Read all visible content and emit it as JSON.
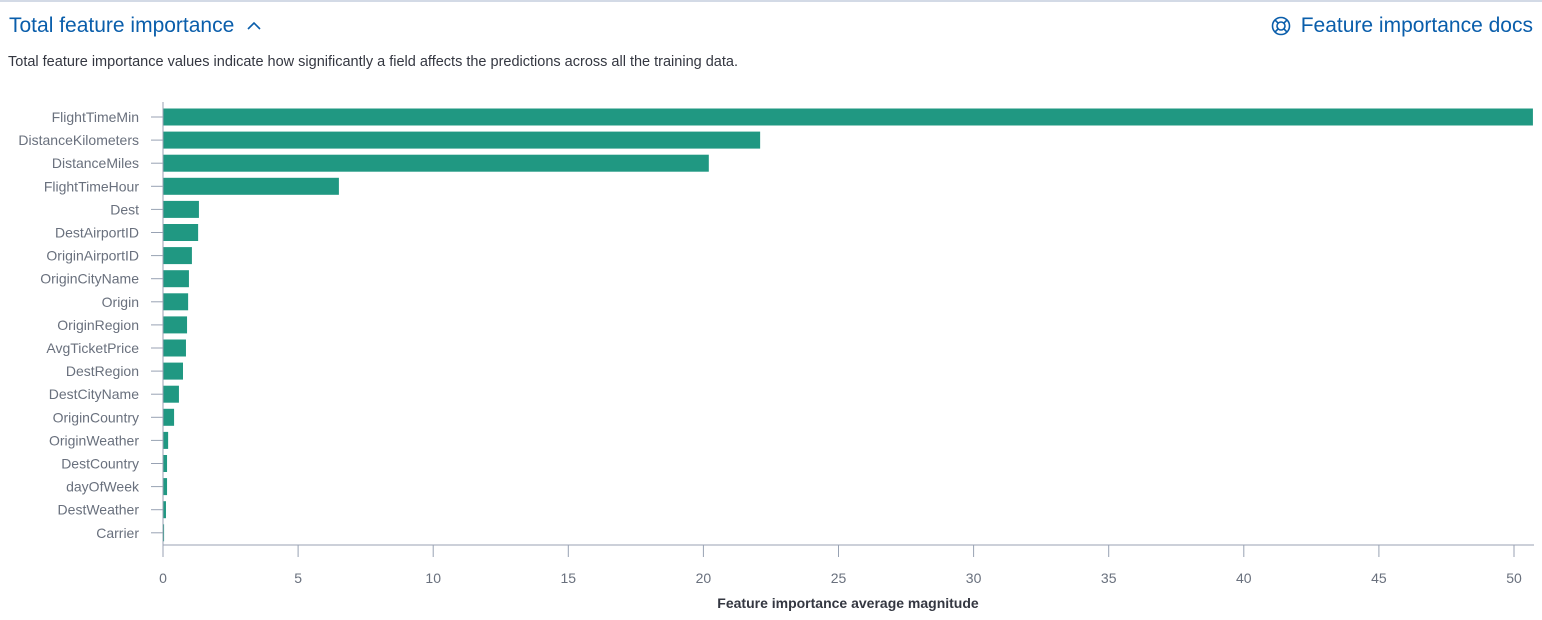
{
  "header": {
    "title": "Total feature importance",
    "docs_link": "Feature importance docs",
    "description": "Total feature importance values indicate how significantly a field affects the predictions across all the training data."
  },
  "icons": {
    "collapse": "chevron-up-icon",
    "docs": "help-lifebuoy-icon"
  },
  "colors": {
    "bar": "#209882",
    "link": "#0a5eab",
    "axis": "#98a2b3"
  },
  "chart_data": {
    "type": "bar",
    "orientation": "horizontal",
    "categories": [
      "FlightTimeMin",
      "DistanceKilometers",
      "DistanceMiles",
      "FlightTimeHour",
      "Dest",
      "DestAirportID",
      "OriginAirportID",
      "OriginCityName",
      "Origin",
      "OriginRegion",
      "AvgTicketPrice",
      "DestRegion",
      "DestCityName",
      "OriginCountry",
      "OriginWeather",
      "DestCountry",
      "dayOfWeek",
      "DestWeather",
      "Carrier"
    ],
    "values": [
      50.7,
      22.1,
      20.2,
      6.51,
      1.33,
      1.3,
      1.07,
      0.96,
      0.93,
      0.89,
      0.85,
      0.74,
      0.59,
      0.41,
      0.19,
      0.15,
      0.15,
      0.11,
      0.04
    ],
    "xlabel": "Feature importance average magnitude",
    "ylabel": "",
    "xlim": [
      0,
      50.7
    ],
    "xticks": [
      0,
      5,
      10,
      15,
      20,
      25,
      30,
      35,
      40,
      45,
      50
    ],
    "grid": false
  }
}
